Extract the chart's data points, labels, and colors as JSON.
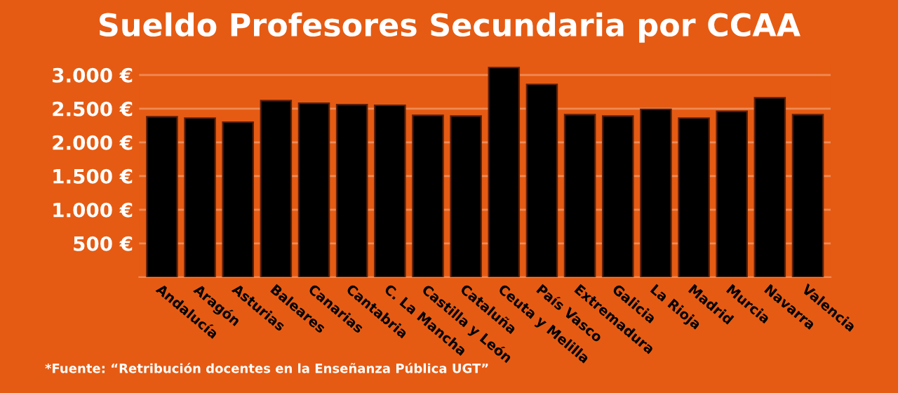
{
  "chart_data": {
    "type": "bar",
    "title": "Sueldo Profesores Secundaria por CCAA",
    "categories": [
      "Andalucía",
      "Aragón",
      "Asturias",
      "Baleares",
      "Canarias",
      "Cantabria",
      "C. La Mancha",
      "Castilla y León",
      "Cataluña",
      "Ceuta y Melilla",
      "País Vasco",
      "Extremadura",
      "Galicia",
      "La Rioja",
      "Madrid",
      "Murcia",
      "Navarra",
      "Valencia"
    ],
    "values": [
      2380,
      2360,
      2300,
      2620,
      2580,
      2560,
      2550,
      2400,
      2390,
      3110,
      2860,
      2410,
      2390,
      2490,
      2360,
      2460,
      2660,
      2410
    ],
    "color": "#000000",
    "ylim": [
      0,
      3150
    ],
    "yticks": [
      {
        "value": 500,
        "label": "500 €"
      },
      {
        "value": 1000,
        "label": "1.000 €"
      },
      {
        "value": 1500,
        "label": "1.500 €"
      },
      {
        "value": 2000,
        "label": "2.000 €"
      },
      {
        "value": 2500,
        "label": "2.500 €"
      },
      {
        "value": 3000,
        "label": "3.000 €"
      }
    ],
    "grid": "y",
    "annotations": [
      "*Fuente: “Retribución docentes en la Enseñanza Pública UGT”"
    ]
  }
}
